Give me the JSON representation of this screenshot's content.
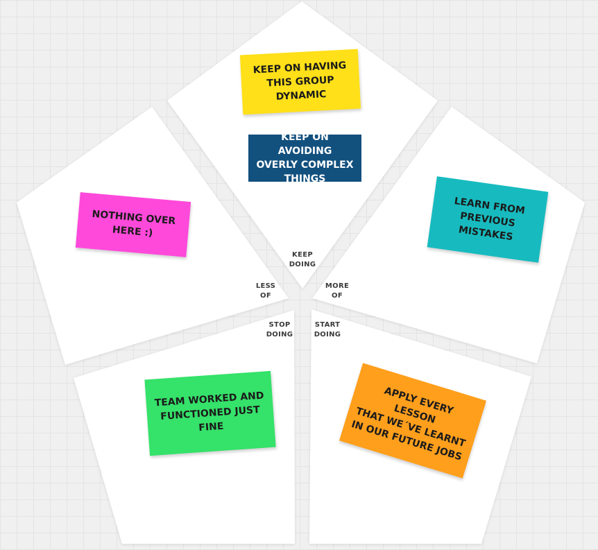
{
  "segments": {
    "keep_doing": "KEEP\nDOING",
    "more_of": "MORE\nOF",
    "start_doing": "START\nDOING",
    "stop_doing": "STOP\nDOING",
    "less_of": "LESS\nOF"
  },
  "notes": {
    "group_dynamic": {
      "text": "KEEP ON HAVING\nTHIS GROUP\nDYNAMIC",
      "color": "#FFE019"
    },
    "avoid_complex": {
      "text": "KEEP ON AVOIDING\nOVERLY COMPLEX\nTHINGS",
      "color": "#12507E"
    },
    "nothing_over_here": {
      "text": "NOTHING OVER\nHERE :)",
      "color": "#FF49DB"
    },
    "learn_mistakes": {
      "text": "LEARN FROM\nPREVIOUS\nMISTAKES",
      "color": "#17BBBF"
    },
    "team_worked": {
      "text": "TEAM WORKED AND\nFUNCTIONED JUST\nFINE",
      "color": "#35E26A"
    },
    "apply_lessons": {
      "text": "APPLY EVERY LESSON\nTHAT WE´VE LEARNT\nIN OUR FUTURE JOBS",
      "color": "#FF9F1C"
    }
  }
}
